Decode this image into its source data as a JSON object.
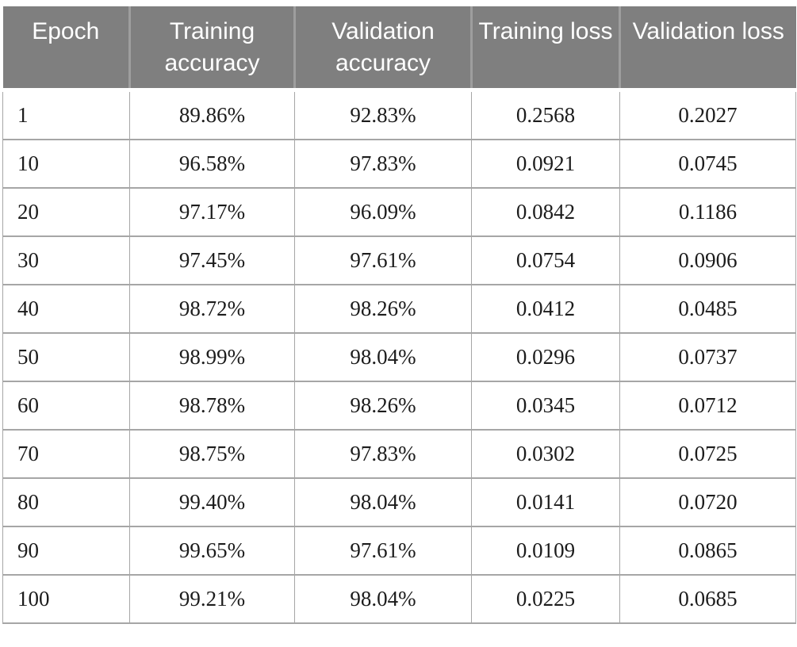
{
  "table": {
    "columns": [
      "Epoch",
      "Training accuracy",
      "Validation accuracy",
      "Training loss",
      "Validation loss"
    ],
    "rows": [
      [
        "1",
        "89.86%",
        "92.83%",
        "0.2568",
        "0.2027"
      ],
      [
        "10",
        "96.58%",
        "97.83%",
        "0.0921",
        "0.0745"
      ],
      [
        "20",
        "97.17%",
        "96.09%",
        "0.0842",
        "0.1186"
      ],
      [
        "30",
        "97.45%",
        "97.61%",
        "0.0754",
        "0.0906"
      ],
      [
        "40",
        "98.72%",
        "98.26%",
        "0.0412",
        "0.0485"
      ],
      [
        "50",
        "98.99%",
        "98.04%",
        "0.0296",
        "0.0737"
      ],
      [
        "60",
        "98.78%",
        "98.26%",
        "0.0345",
        "0.0712"
      ],
      [
        "70",
        "98.75%",
        "97.83%",
        "0.0302",
        "0.0725"
      ],
      [
        "80",
        "99.40%",
        "98.04%",
        "0.0141",
        "0.0720"
      ],
      [
        "90",
        "99.65%",
        "97.61%",
        "0.0109",
        "0.0865"
      ],
      [
        "100",
        "99.21%",
        "98.04%",
        "0.0225",
        "0.0685"
      ]
    ]
  },
  "colors": {
    "header_bg": "#7f7f7f",
    "header_text": "#ffffff",
    "header_divider": "#9e9e9e",
    "body_border": "#a6a6a6",
    "body_text": "#1c1c1c",
    "page_bg": "#ffffff"
  }
}
